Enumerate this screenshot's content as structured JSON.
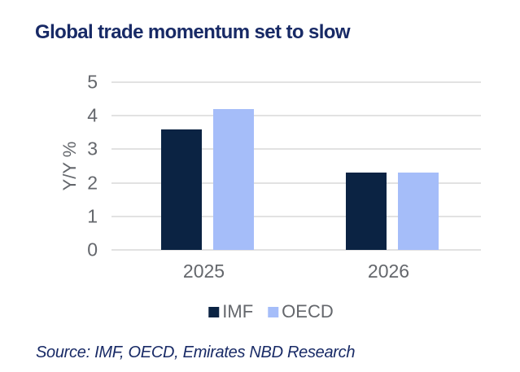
{
  "title": "Global trade momentum set to slow",
  "source_note": "Source: IMF, OECD, Emirates NBD Research",
  "colors": {
    "title": "#182a66",
    "axis_text": "#64676c",
    "gridline": "#e2e2e2",
    "imf_bar": "#0b2343",
    "oecd_bar": "#a5bdf9",
    "background": "#ffffff"
  },
  "chart_data": {
    "type": "bar",
    "title": "Global trade momentum set to slow",
    "categories": [
      "2025",
      "2026"
    ],
    "series": [
      {
        "name": "IMF",
        "color": "#0b2343",
        "values": [
          3.6,
          2.3
        ]
      },
      {
        "name": "OECD",
        "color": "#a5bdf9",
        "values": [
          4.2,
          2.3
        ]
      }
    ],
    "xlabel": "",
    "ylabel": "Y/Y %",
    "ylim": [
      0,
      5
    ],
    "yticks": [
      0,
      1,
      2,
      3,
      4,
      5
    ],
    "grid": true,
    "legend_position": "bottom",
    "legend_labels": [
      "IMF",
      "OECD"
    ]
  }
}
